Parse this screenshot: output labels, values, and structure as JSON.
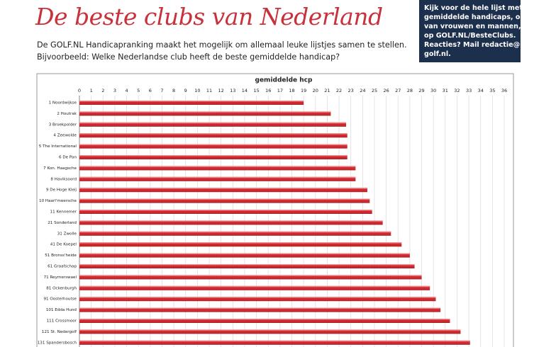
{
  "header": {
    "title": "De beste clubs van Nederland",
    "intro": [
      "De GOLF.NL Handicapranking maakt het mogelijk om allemaal leuke lijstjes samen te stellen.",
      "Bijvoorbeeld: Welke Nederlandse club heeft de beste gemiddelde handicap?"
    ]
  },
  "sidebar": {
    "lines": [
      "Kijk voor de hele lijst met de",
      "gemiddelde handicaps, ook",
      "van vrouwen en mannen,",
      "op GOLF.NL/BesteClubs.",
      "Reacties? Mail redactie@",
      "golf.nl."
    ]
  },
  "chart_data": {
    "type": "hbar",
    "title": "gemiddelde hcp",
    "color": "#d41f26",
    "categories": [
      "1 Noordwijkse",
      "2 Houtrak",
      "3 Broekpolder",
      "4 Zeewolde",
      "5 The International",
      "6 De Pan",
      "7 Kon. Haagsche",
      "8 Haviksoord",
      "9 De Hoge Kleij",
      "10 Haarl'meersche",
      "11 Kennemer",
      "21 Sonderland",
      "31 Zwolle",
      "41 De Koepel",
      "51 Bronss'heide",
      "61 Graafschap",
      "71 Reymerswael",
      "81 Ockenburgh",
      "91 Oosterhoutse",
      "101 Edda Hund",
      "111 Crossmoor",
      "121 St. Nedergolf",
      "131 Spandersbosch"
    ],
    "values": [
      19.0,
      21.3,
      22.6,
      22.7,
      22.7,
      22.7,
      23.4,
      23.4,
      24.4,
      24.6,
      24.8,
      25.7,
      26.4,
      27.3,
      28.0,
      28.4,
      29.0,
      29.7,
      30.2,
      30.6,
      31.4,
      32.3,
      33.1
    ],
    "xlim": [
      0,
      36
    ],
    "xticks": [
      0,
      1,
      2,
      3,
      4,
      5,
      6,
      7,
      8,
      9,
      10,
      11,
      12,
      13,
      14,
      15,
      16,
      17,
      18,
      19,
      20,
      21,
      22,
      23,
      24,
      25,
      26,
      27,
      28,
      29,
      30,
      31,
      32,
      33,
      34,
      35,
      36
    ],
    "grid": true
  }
}
